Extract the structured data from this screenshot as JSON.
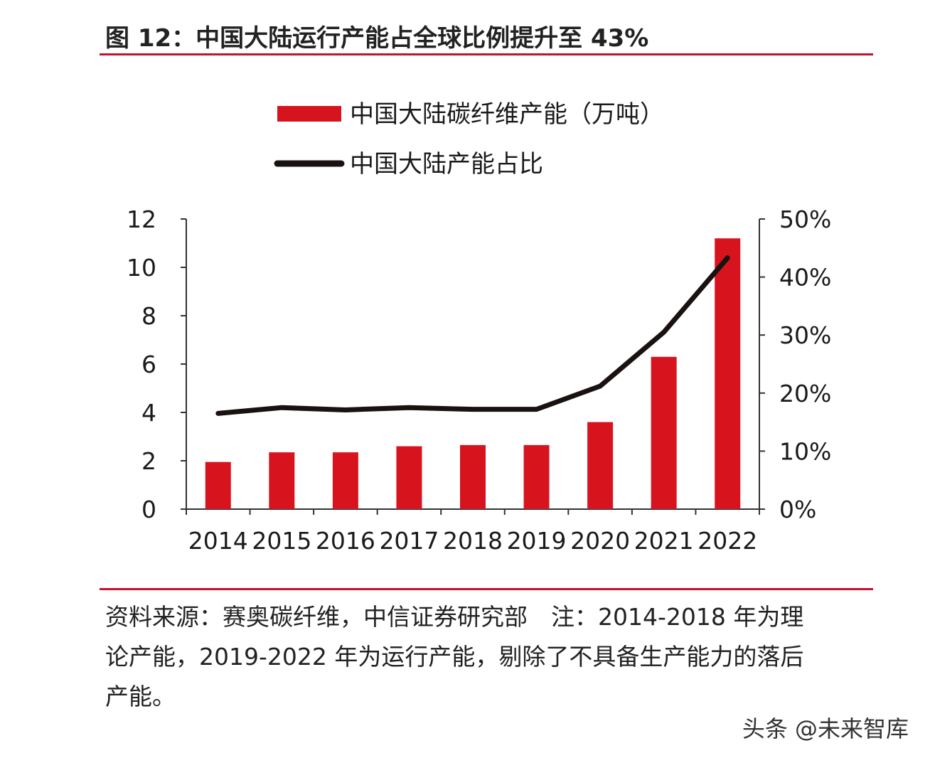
{
  "title": "图 12：中国大陆运行产能占全球比例提升至 43%",
  "chart_data": {
    "type": "bar",
    "categories": [
      "2014",
      "2015",
      "2016",
      "2017",
      "2018",
      "2019",
      "2020",
      "2021",
      "2022"
    ],
    "series": [
      {
        "name": "中国大陆碳纤维产能（万吨）",
        "type": "bar",
        "axis": "left",
        "color": "#d7141e",
        "values": [
          1.95,
          2.35,
          2.35,
          2.6,
          2.65,
          2.65,
          3.6,
          6.3,
          11.2
        ]
      },
      {
        "name": "中国大陆产能占比",
        "type": "line",
        "axis": "right",
        "color": "#1a1111",
        "values": [
          0.165,
          0.175,
          0.171,
          0.175,
          0.172,
          0.172,
          0.212,
          0.305,
          0.433
        ]
      }
    ],
    "y_left": {
      "min": 0,
      "max": 12,
      "ticks": [
        "0",
        "2",
        "4",
        "6",
        "8",
        "10",
        "12"
      ]
    },
    "y_right": {
      "min": 0,
      "max": 0.5,
      "ticks": [
        "0%",
        "10%",
        "20%",
        "30%",
        "40%",
        "50%"
      ]
    },
    "legend": "top-left",
    "grid": false
  },
  "footnote": {
    "lines": [
      "资料来源：赛奥碳纤维，中信证券研究部　注：2014-2018 年为理",
      "论产能，2019-2022 年为运行产能，剔除了不具备生产能力的落后",
      "产能。"
    ]
  },
  "watermark": "头条 @未来智库"
}
